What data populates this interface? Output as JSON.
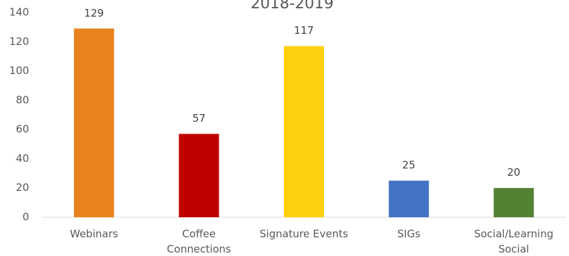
{
  "chart_data": {
    "type": "bar",
    "title": "2018-2019",
    "categories": [
      "Webinars",
      "Coffee Connections",
      "Signature Events",
      "SIGs",
      "Social/Learning Social"
    ],
    "category_lines": [
      [
        "Webinars"
      ],
      [
        "Coffee",
        "Connections"
      ],
      [
        "Signature Events"
      ],
      [
        "SIGs"
      ],
      [
        "Social/Learning",
        "Social"
      ]
    ],
    "values": [
      129,
      57,
      117,
      25,
      20
    ],
    "colors": [
      "#E8821E",
      "#C00000",
      "#FFD010",
      "#4472C4",
      "#548235"
    ],
    "ylim": [
      0,
      140
    ],
    "yticks": [
      0,
      20,
      40,
      60,
      80,
      100,
      120,
      140
    ],
    "data_labels": true,
    "grid": false,
    "legend": "none"
  }
}
